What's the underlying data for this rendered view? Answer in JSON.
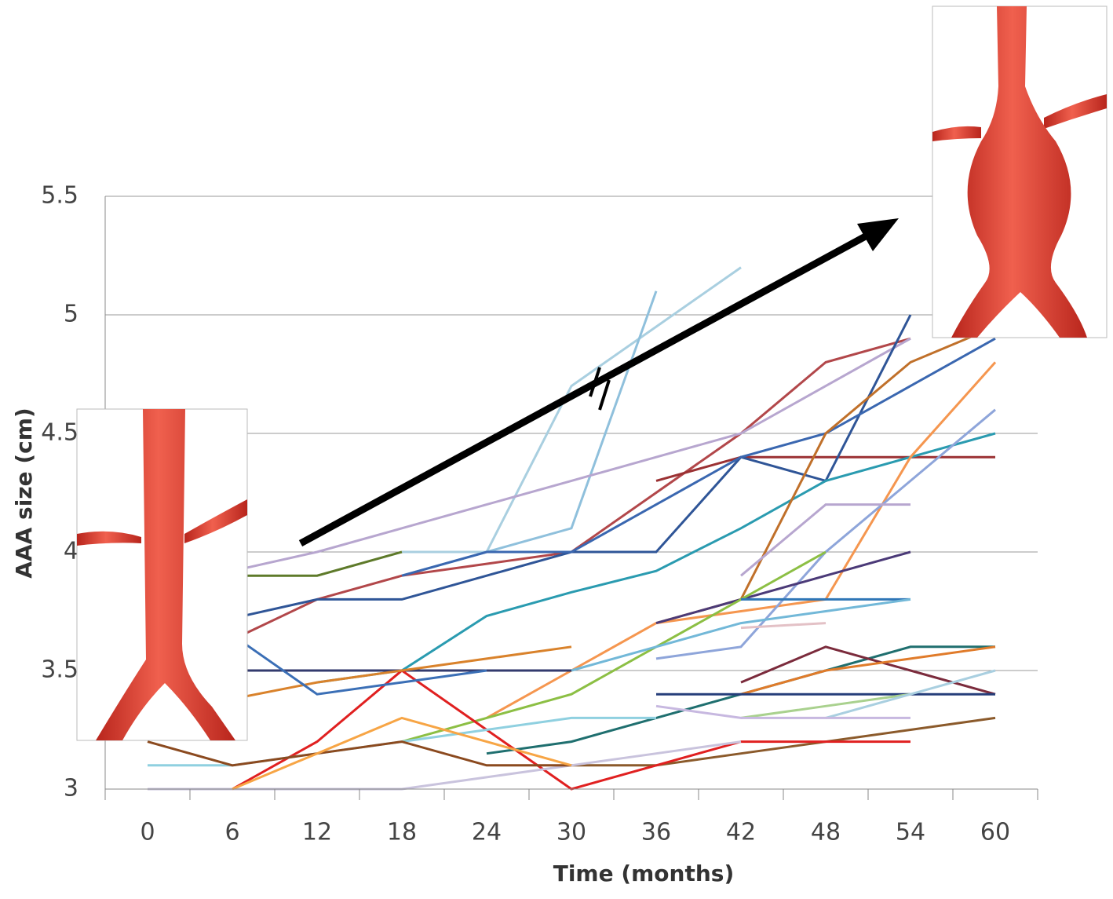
{
  "chart_data": {
    "type": "line",
    "x_label": "Time (months)",
    "y_label": "AAA size (cm)",
    "categories": [
      "0",
      "6",
      "12",
      "18",
      "24",
      "30",
      "36",
      "42",
      "48",
      "54",
      "60"
    ],
    "ylim": [
      3,
      5.5
    ],
    "yticks": [
      3,
      3.5,
      4,
      4.5,
      5,
      5.5
    ],
    "grid": true,
    "series": [
      {
        "color": "#a9cfe0",
        "values": [
          null,
          null,
          null,
          4.0,
          4.0,
          4.7,
          4.95,
          5.2,
          null,
          null,
          null
        ]
      },
      {
        "color": "#8fc0dc",
        "values": [
          null,
          null,
          null,
          3.9,
          4.0,
          4.1,
          5.1,
          null,
          null,
          null,
          null
        ]
      },
      {
        "color": "#b2474a",
        "values": [
          null,
          3.63,
          3.8,
          3.9,
          3.95,
          4.0,
          4.25,
          4.5,
          4.8,
          4.9,
          null
        ]
      },
      {
        "color": "#b7a6cf",
        "values": [
          null,
          3.92,
          4.0,
          4.1,
          4.2,
          4.3,
          4.4,
          4.5,
          4.7,
          4.9,
          null
        ]
      },
      {
        "color": "#9b3133",
        "values": [
          null,
          null,
          null,
          null,
          4.2,
          null,
          4.3,
          4.4,
          4.4,
          4.4,
          4.4
        ]
      },
      {
        "color": "#2f5597",
        "values": [
          null,
          3.72,
          3.8,
          3.8,
          3.9,
          4.0,
          4.0,
          4.4,
          4.3,
          5.0,
          null
        ]
      },
      {
        "color": "#3a67b0",
        "values": [
          null,
          null,
          null,
          3.9,
          4.0,
          4.0,
          4.2,
          4.4,
          4.5,
          4.7,
          4.9
        ]
      },
      {
        "color": "#5e7a2a",
        "values": [
          null,
          3.9,
          3.9,
          4.0,
          null,
          null,
          null,
          null,
          null,
          null,
          null
        ]
      },
      {
        "color": "#2a9bb0",
        "values": [
          null,
          null,
          3.45,
          3.5,
          3.73,
          3.83,
          3.92,
          4.1,
          4.3,
          4.4,
          4.5
        ]
      },
      {
        "color": "#c0702a",
        "values": [
          null,
          null,
          null,
          null,
          null,
          null,
          3.7,
          3.8,
          4.5,
          4.8,
          4.95
        ]
      },
      {
        "color": "#f5964f",
        "values": [
          null,
          null,
          null,
          null,
          3.3,
          3.5,
          3.7,
          3.75,
          3.8,
          4.4,
          4.8
        ]
      },
      {
        "color": "#8ea5da",
        "values": [
          null,
          null,
          null,
          null,
          null,
          null,
          3.55,
          3.6,
          4.0,
          4.3,
          4.6
        ]
      },
      {
        "color": "#b7a6cf",
        "values": [
          null,
          null,
          null,
          null,
          null,
          null,
          null,
          3.9,
          4.2,
          4.2,
          null
        ]
      },
      {
        "color": "#4b3a78",
        "values": [
          null,
          null,
          null,
          null,
          null,
          null,
          3.7,
          3.8,
          3.9,
          4.0,
          null
        ]
      },
      {
        "color": "#8cbf44",
        "values": [
          null,
          null,
          null,
          3.2,
          3.3,
          3.4,
          3.6,
          3.8,
          4.0,
          null,
          null
        ]
      },
      {
        "color": "#2e75b6",
        "values": [
          null,
          null,
          null,
          null,
          null,
          null,
          null,
          3.8,
          3.8,
          3.8,
          null
        ]
      },
      {
        "color": "#72b8d8",
        "values": [
          null,
          null,
          null,
          null,
          null,
          3.5,
          3.6,
          3.7,
          3.75,
          3.8,
          null
        ]
      },
      {
        "color": "#e3c1c6",
        "values": [
          null,
          null,
          null,
          3.6,
          null,
          3.65,
          null,
          3.68,
          3.7,
          null,
          null
        ]
      },
      {
        "color": "#333b6e",
        "values": [
          null,
          3.5,
          3.5,
          3.5,
          3.5,
          3.5,
          null,
          null,
          null,
          null,
          null
        ]
      },
      {
        "color": "#1f6f6f",
        "values": [
          null,
          null,
          null,
          null,
          3.15,
          3.2,
          3.3,
          3.4,
          3.5,
          3.6,
          3.6
        ]
      },
      {
        "color": "#7b2b3c",
        "values": [
          null,
          null,
          null,
          null,
          null,
          null,
          null,
          3.45,
          3.6,
          3.5,
          3.4
        ]
      },
      {
        "color": "#e07b2a",
        "values": [
          null,
          null,
          null,
          null,
          null,
          null,
          null,
          3.4,
          3.5,
          3.55,
          3.6
        ]
      },
      {
        "color": "#253d7a",
        "values": [
          null,
          null,
          null,
          null,
          null,
          null,
          3.4,
          3.4,
          3.4,
          3.4,
          3.4
        ]
      },
      {
        "color": "#8b5a2b",
        "values": [
          null,
          null,
          null,
          null,
          null,
          3.1,
          3.1,
          3.15,
          3.2,
          3.25,
          3.3
        ]
      },
      {
        "color": "#e02020",
        "values": [
          null,
          3.0,
          3.2,
          3.5,
          3.25,
          3.0,
          3.1,
          3.2,
          3.2,
          3.2,
          null
        ]
      },
      {
        "color": "#d9822b",
        "values": [
          null,
          3.38,
          3.45,
          3.5,
          3.55,
          3.6,
          null,
          null,
          null,
          null,
          null
        ]
      },
      {
        "color": "#c9c3dd",
        "values": [
          3.0,
          3.0,
          3.0,
          3.0,
          3.05,
          3.1,
          3.15,
          3.2,
          null,
          null,
          null
        ]
      },
      {
        "color": "#a9d18e",
        "values": [
          null,
          null,
          null,
          null,
          null,
          null,
          null,
          3.3,
          3.35,
          3.4,
          null
        ]
      },
      {
        "color": "#a9cfe0",
        "values": [
          null,
          null,
          null,
          null,
          null,
          null,
          null,
          null,
          3.3,
          3.4,
          3.5
        ]
      },
      {
        "color": "#c7b8e0",
        "values": [
          null,
          null,
          null,
          null,
          null,
          null,
          3.35,
          3.3,
          3.3,
          3.3,
          null
        ]
      },
      {
        "color": "#8fd0e0",
        "values": [
          3.1,
          3.1,
          3.15,
          3.2,
          3.25,
          3.3,
          3.3,
          null,
          null,
          null,
          null
        ]
      },
      {
        "color": "#8b4a1f",
        "values": [
          3.2,
          3.1,
          3.15,
          3.2,
          3.1,
          3.1,
          null,
          null,
          null,
          null,
          null
        ]
      },
      {
        "color": "#f7a545",
        "values": [
          null,
          3.0,
          3.15,
          3.3,
          3.2,
          3.1,
          null,
          null,
          null,
          null,
          null
        ]
      },
      {
        "color": "#3b6fb6",
        "values": [
          null,
          3.65,
          3.4,
          3.45,
          3.5,
          null,
          null,
          null,
          null,
          null,
          null
        ]
      }
    ]
  }
}
